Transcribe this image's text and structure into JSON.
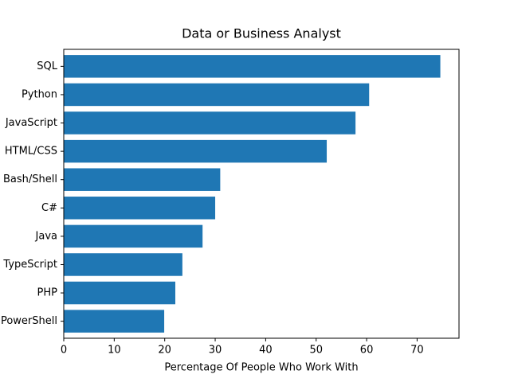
{
  "chart_data": {
    "type": "barh",
    "title": "Data or Business Analyst",
    "x_label": "Percentage Of People Who Work With",
    "categories": [
      "SQL",
      "Python",
      "JavaScript",
      "HTML/CSS",
      "Bash/Shell",
      "C#",
      "Java",
      "TypeScript",
      "PHP",
      "PowerShell"
    ],
    "values": [
      74.6,
      60.5,
      57.8,
      52.1,
      31.0,
      30.0,
      27.5,
      23.5,
      22.1,
      19.9
    ],
    "color": "#1f77b4",
    "xlim": [
      0,
      78.3
    ],
    "xticks": [
      0,
      10,
      20,
      30,
      40,
      50,
      60,
      70
    ]
  }
}
